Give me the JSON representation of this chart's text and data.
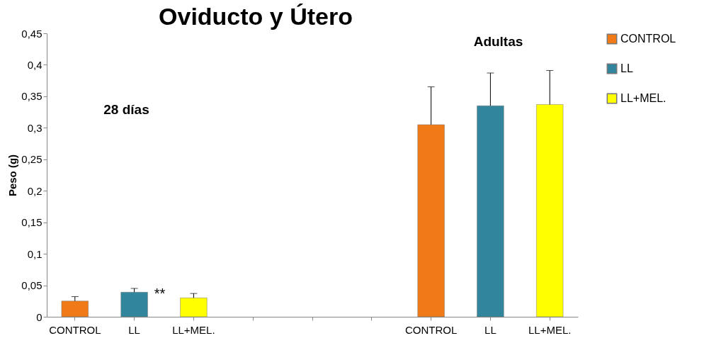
{
  "chart_data": {
    "type": "bar",
    "title": "Oviducto y Útero",
    "ylabel": "Peso (g)",
    "categories": [
      "CONTROL",
      "LL",
      "LL+MEL.",
      null,
      null,
      null,
      "CONTROL",
      "LL",
      "LL+MEL."
    ],
    "series": [
      {
        "name": "CONTROL",
        "color": "#f07a18",
        "values": [
          0.025,
          null,
          null,
          null,
          null,
          null,
          0.305,
          null,
          null
        ],
        "errors": [
          [
            0.025,
            0.032
          ],
          null,
          null,
          null,
          null,
          null,
          [
            0.305,
            0.365
          ],
          null,
          null
        ]
      },
      {
        "name": "LL",
        "color": "#31859c",
        "values": [
          null,
          0.039,
          null,
          null,
          null,
          null,
          null,
          0.335,
          null
        ],
        "errors": [
          null,
          [
            0.039,
            0.045
          ],
          null,
          null,
          null,
          null,
          null,
          [
            0.335,
            0.387
          ],
          null
        ]
      },
      {
        "name": "LL+MEL.",
        "color": "#ffff00",
        "values": [
          null,
          null,
          0.03,
          null,
          null,
          null,
          null,
          null,
          0.337
        ],
        "errors": [
          null,
          null,
          [
            0.03,
            0.037
          ],
          null,
          null,
          null,
          null,
          null,
          [
            0.337,
            0.391
          ]
        ]
      }
    ],
    "ylim": [
      0,
      0.45
    ],
    "yticks": [
      0,
      {
        "value": 0.05,
        "label": "0,05"
      },
      {
        "value": 0.1,
        "label": "0,1"
      },
      {
        "value": 0.15,
        "label": "0,15"
      },
      {
        "value": 0.2,
        "label": "0,2"
      },
      {
        "value": 0.25,
        "label": "0,25"
      },
      {
        "value": 0.3,
        "label": "0,3"
      },
      {
        "value": 0.35,
        "label": "0,35"
      },
      {
        "value": 0.4,
        "label": "0,4"
      },
      {
        "value": 0.45,
        "label": "0,45"
      }
    ],
    "annotations": [
      "28 días",
      "Adultas",
      {
        "text": "**",
        "x": "LL",
        "y": 0.045
      }
    ],
    "grid": false,
    "legend": "right"
  }
}
